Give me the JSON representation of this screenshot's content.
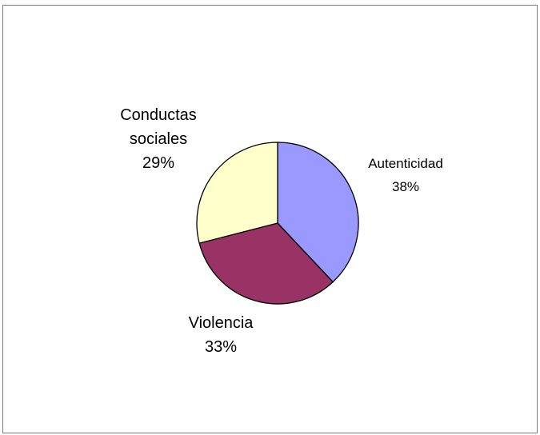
{
  "chart_data": {
    "type": "pie",
    "title": "",
    "slices": [
      {
        "label_lines": [
          "Autenticidad"
        ],
        "percent_label": "38%",
        "value": 38,
        "color": "#9999ff"
      },
      {
        "label_lines": [
          "Violencia"
        ],
        "percent_label": "33%",
        "value": 33,
        "color": "#993366"
      },
      {
        "label_lines": [
          "Conductas",
          "sociales"
        ],
        "percent_label": "29%",
        "value": 29,
        "color": "#ffffcc"
      }
    ],
    "start_angle_deg": 0,
    "direction": "clockwise",
    "legend": "none",
    "slice_border_color": "#000000"
  }
}
